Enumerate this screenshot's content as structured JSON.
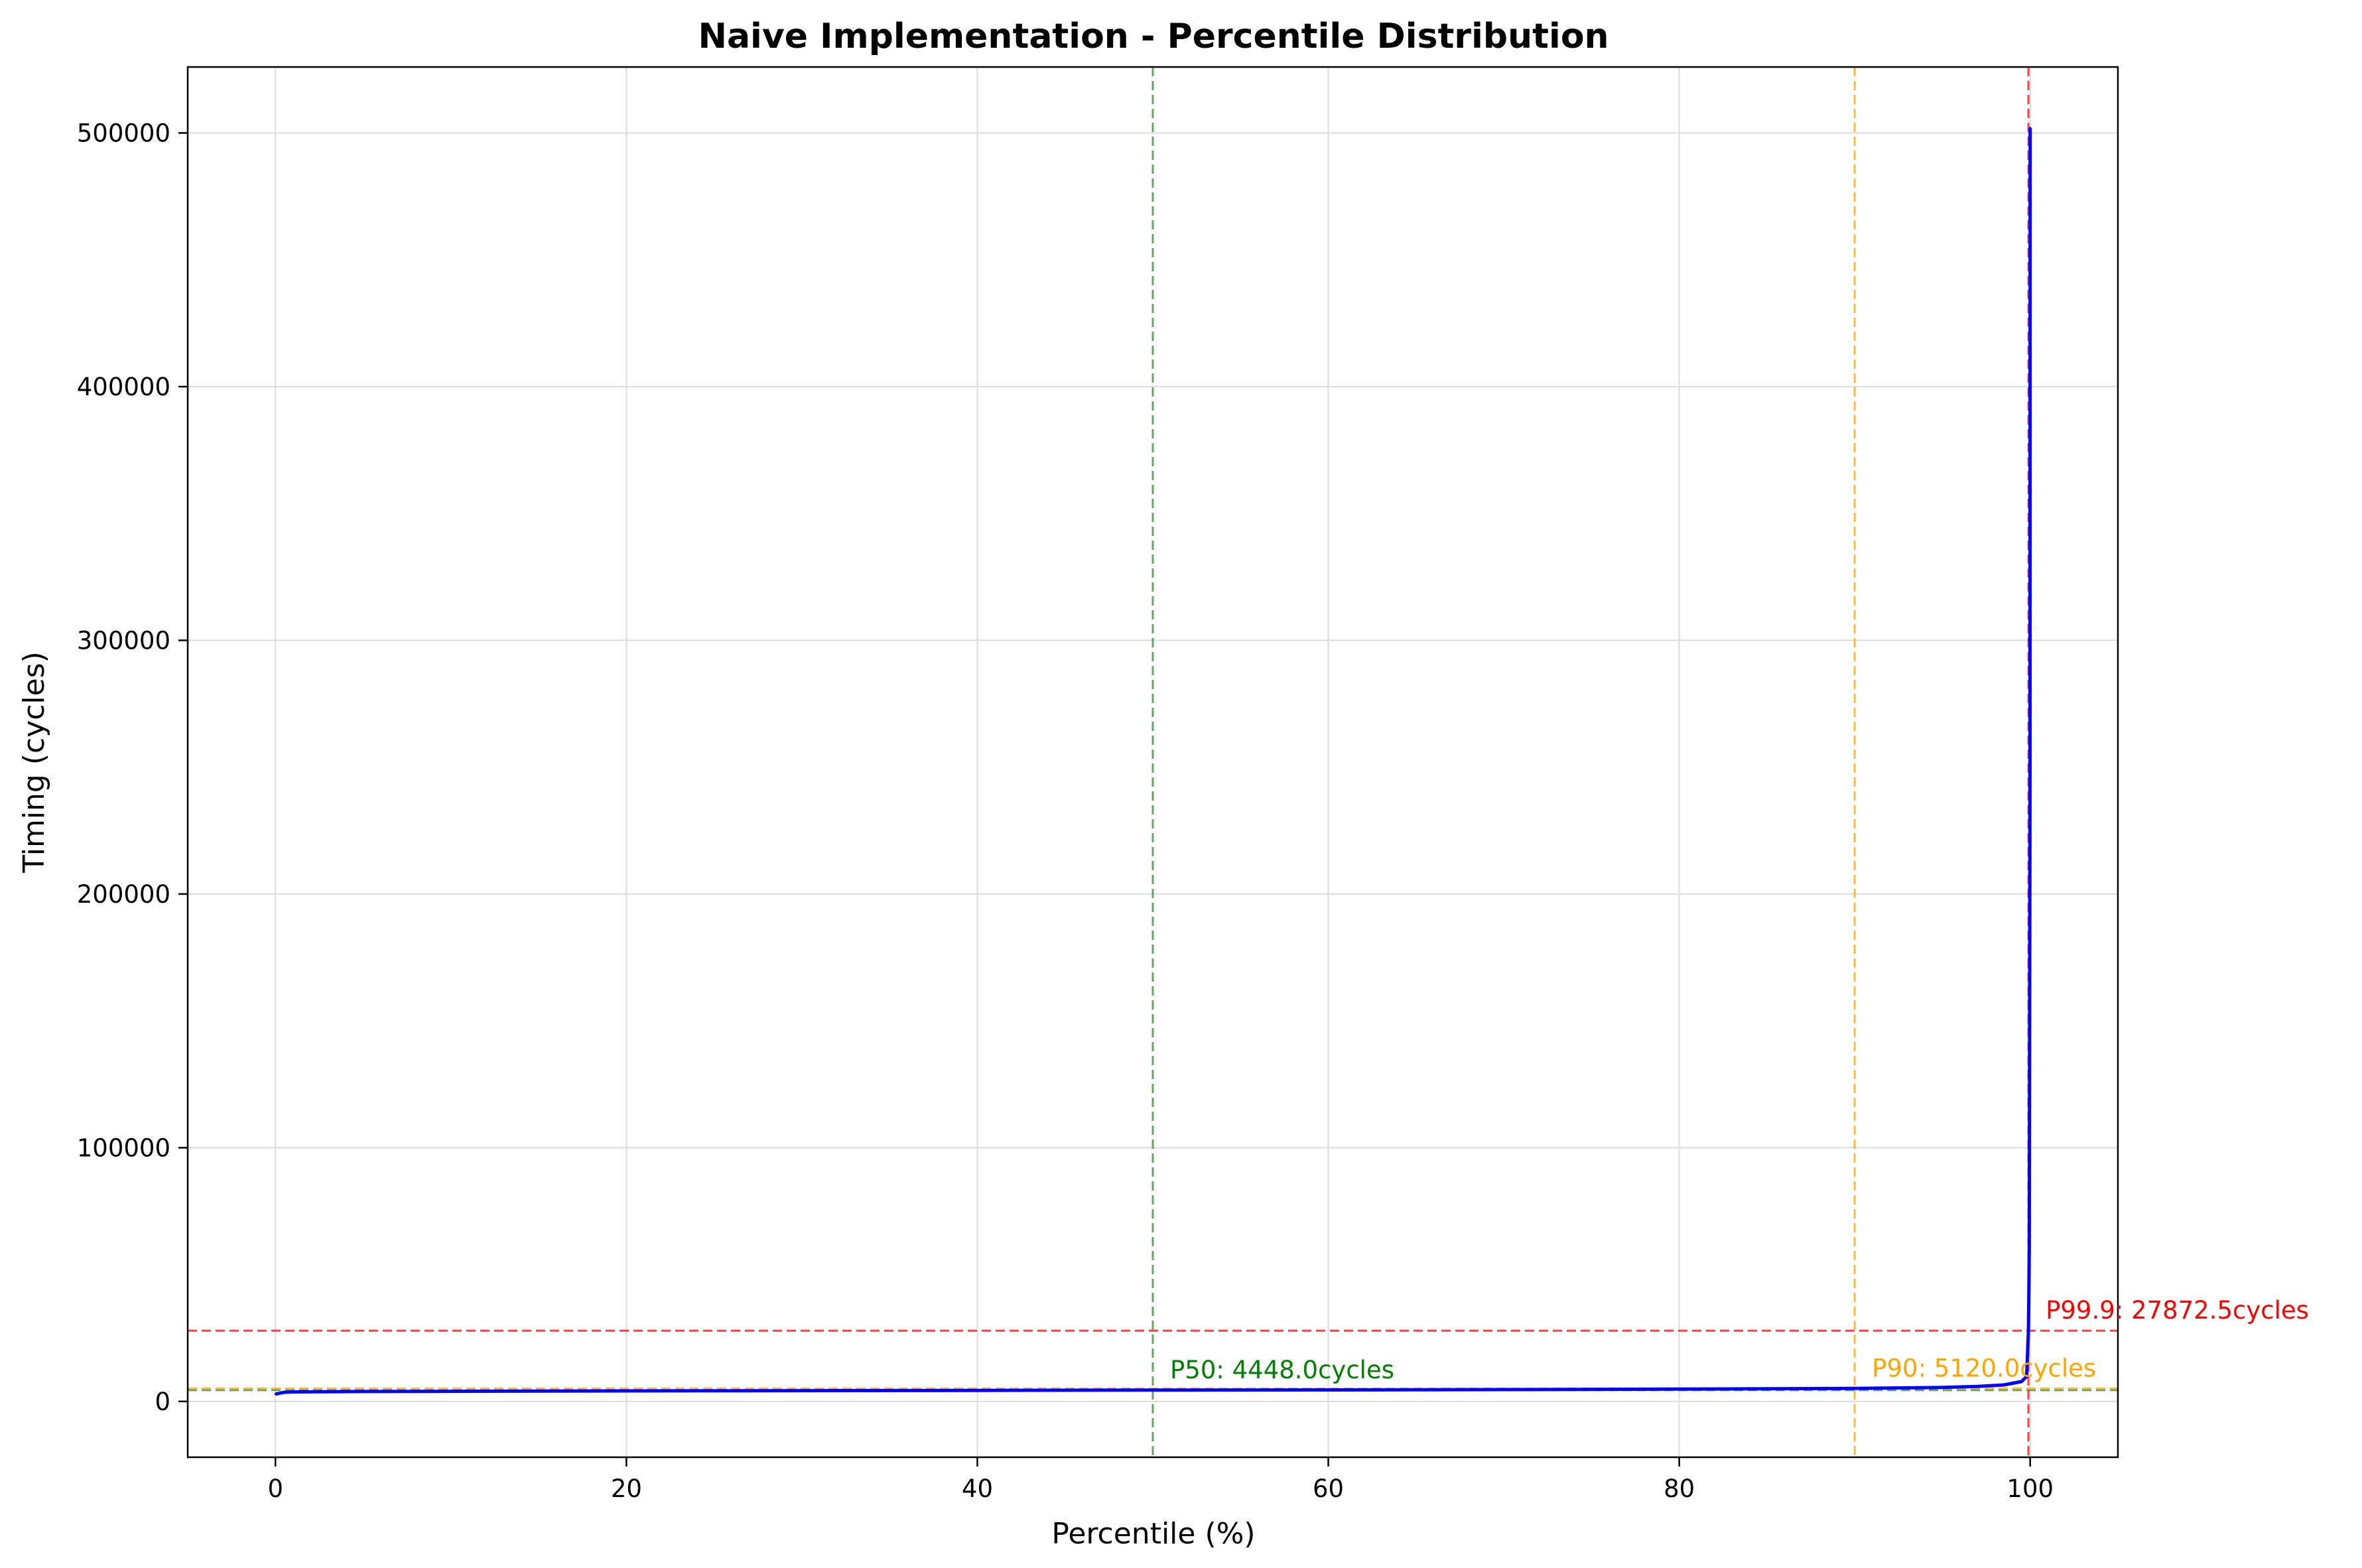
{
  "chart_data": {
    "type": "line",
    "title": "Naive Implementation - Percentile Distribution",
    "xlabel": "Percentile (%)",
    "ylabel": "Timing (cycles)",
    "xlim": [
      -5,
      105
    ],
    "ylim": [
      -22000,
      526000
    ],
    "xticks": [
      0,
      20,
      40,
      60,
      80,
      100
    ],
    "yticks": [
      0,
      100000,
      200000,
      300000,
      400000,
      500000
    ],
    "grid": true,
    "series": [
      {
        "color": "#0000ff",
        "x": [
          0,
          0.5,
          1,
          5,
          10,
          20,
          30,
          40,
          50,
          60,
          70,
          80,
          90,
          95,
          97,
          98.5,
          99.5,
          99.8,
          99.9,
          99.95,
          99.99,
          100
        ],
        "y": [
          2900,
          3600,
          3750,
          3900,
          4000,
          4150,
          4250,
          4350,
          4448,
          4550,
          4680,
          4850,
          5120,
          5500,
          5900,
          6500,
          7800,
          9800,
          27872.5,
          60000,
          250000,
          502000
        ]
      }
    ],
    "reference_lines": [
      {
        "percentile": 50,
        "value": 4448.0,
        "color": "#2e8b2e",
        "text_color": "#008000",
        "label": "P50: 4448.0cycles"
      },
      {
        "percentile": 90,
        "value": 5120.0,
        "color": "#ffa500",
        "text_color": "#ffa500",
        "label": "P90: 5120.0cycles"
      },
      {
        "percentile": 99.9,
        "value": 27872.5,
        "color": "#ff0000",
        "text_color": "#ff0000",
        "label": "P99.9: 27872.5cycles"
      }
    ]
  }
}
